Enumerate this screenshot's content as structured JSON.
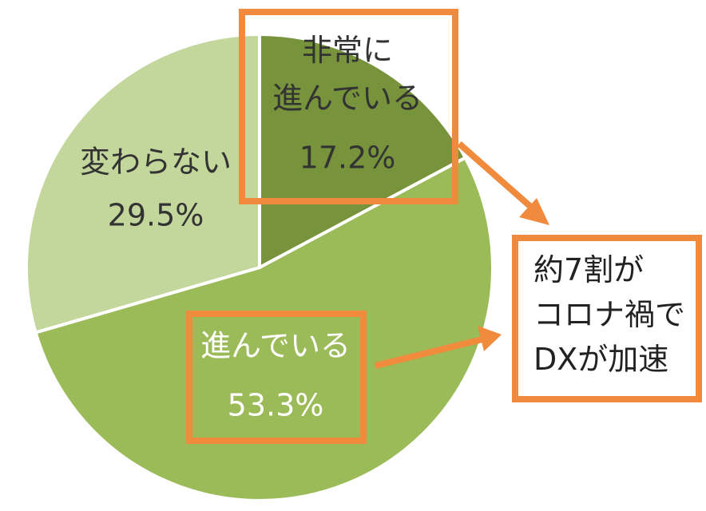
{
  "chart_data": {
    "type": "pie",
    "categories": [
      "非常に\n進んでいる",
      "進んでいる",
      "変わらない"
    ],
    "values": [
      17.2,
      53.3,
      29.5
    ],
    "value_labels": [
      "17.2%",
      "53.3%",
      "29.5%"
    ],
    "colors": [
      "#77933c",
      "#9bbb59",
      "#c3d69b"
    ],
    "annotation": "約7割が\nコロナ禍で\nDXが加速"
  }
}
